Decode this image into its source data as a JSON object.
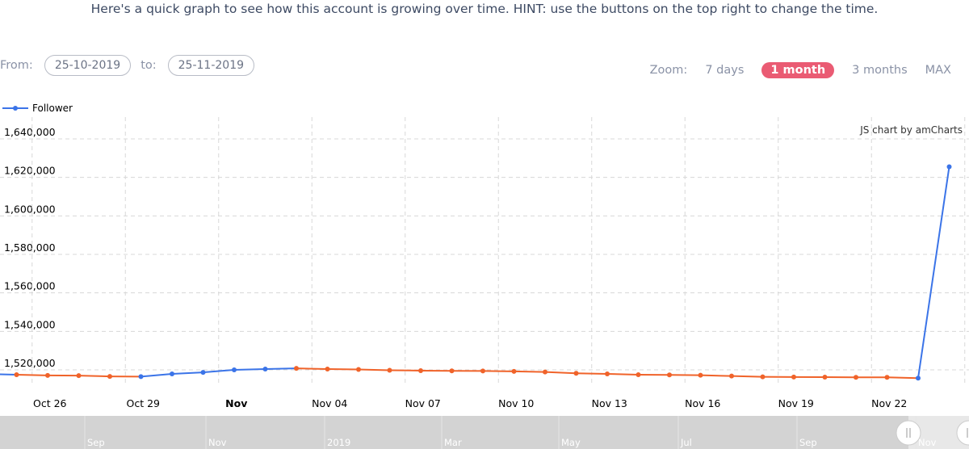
{
  "hint": "Here's a quick graph to see how this account is growing over time. HINT: use the buttons on the top right to change the time.",
  "range": {
    "from_label": "From:",
    "from_value": "25-10-2019",
    "to_label": "to:",
    "to_value": "25-11-2019"
  },
  "zoom": {
    "label": "Zoom:",
    "options": [
      "7 days",
      "1 month",
      "3 months",
      "MAX"
    ],
    "active": "1 month"
  },
  "credit": "JS chart by amCharts",
  "colors": {
    "increase": "#3b74e8",
    "decrease": "#f0632a",
    "accent": "#ea5b73",
    "scrollbar": "#d3d3d3"
  },
  "chart_data": {
    "type": "line",
    "legend": {
      "entries": [
        "Follower"
      ],
      "placement": "top-left"
    },
    "grid": true,
    "ylim": [
      1510000,
      1645000
    ],
    "y_ticks": [
      "1,520,000",
      "1,540,000",
      "1,560,000",
      "1,580,000",
      "1,600,000",
      "1,620,000",
      "1,640,000"
    ],
    "x_ticks": [
      "Oct 26",
      "Oct 29",
      "Nov",
      "Nov 04",
      "Nov 07",
      "Nov 10",
      "Nov 13",
      "Nov 16",
      "Nov 19",
      "Nov 22"
    ],
    "x_tick_bold": "Nov",
    "series": [
      {
        "name": "Follower",
        "x": [
          "2019-10-25",
          "2019-10-26",
          "2019-10-27",
          "2019-10-28",
          "2019-10-29",
          "2019-10-30",
          "2019-10-31",
          "2019-11-01",
          "2019-11-02",
          "2019-11-03",
          "2019-11-04",
          "2019-11-05",
          "2019-11-06",
          "2019-11-07",
          "2019-11-08",
          "2019-11-09",
          "2019-11-10",
          "2019-11-11",
          "2019-11-12",
          "2019-11-13",
          "2019-11-14",
          "2019-11-15",
          "2019-11-16",
          "2019-11-17",
          "2019-11-18",
          "2019-11-19",
          "2019-11-20",
          "2019-11-21",
          "2019-11-22",
          "2019-11-23",
          "2019-11-24"
        ],
        "values": [
          1517500,
          1517100,
          1517000,
          1516600,
          1516500,
          1517900,
          1518700,
          1520000,
          1520400,
          1520800,
          1520400,
          1520200,
          1519800,
          1519600,
          1519500,
          1519400,
          1519200,
          1518900,
          1518200,
          1517900,
          1517500,
          1517400,
          1517200,
          1516800,
          1516400,
          1516300,
          1516200,
          1516100,
          1516100,
          1515700,
          1625500
        ]
      }
    ],
    "scrollbar_labels": [
      "Sep",
      "Nov",
      "2019",
      "Mar",
      "May",
      "Jul",
      "Sep",
      "Nov"
    ]
  }
}
